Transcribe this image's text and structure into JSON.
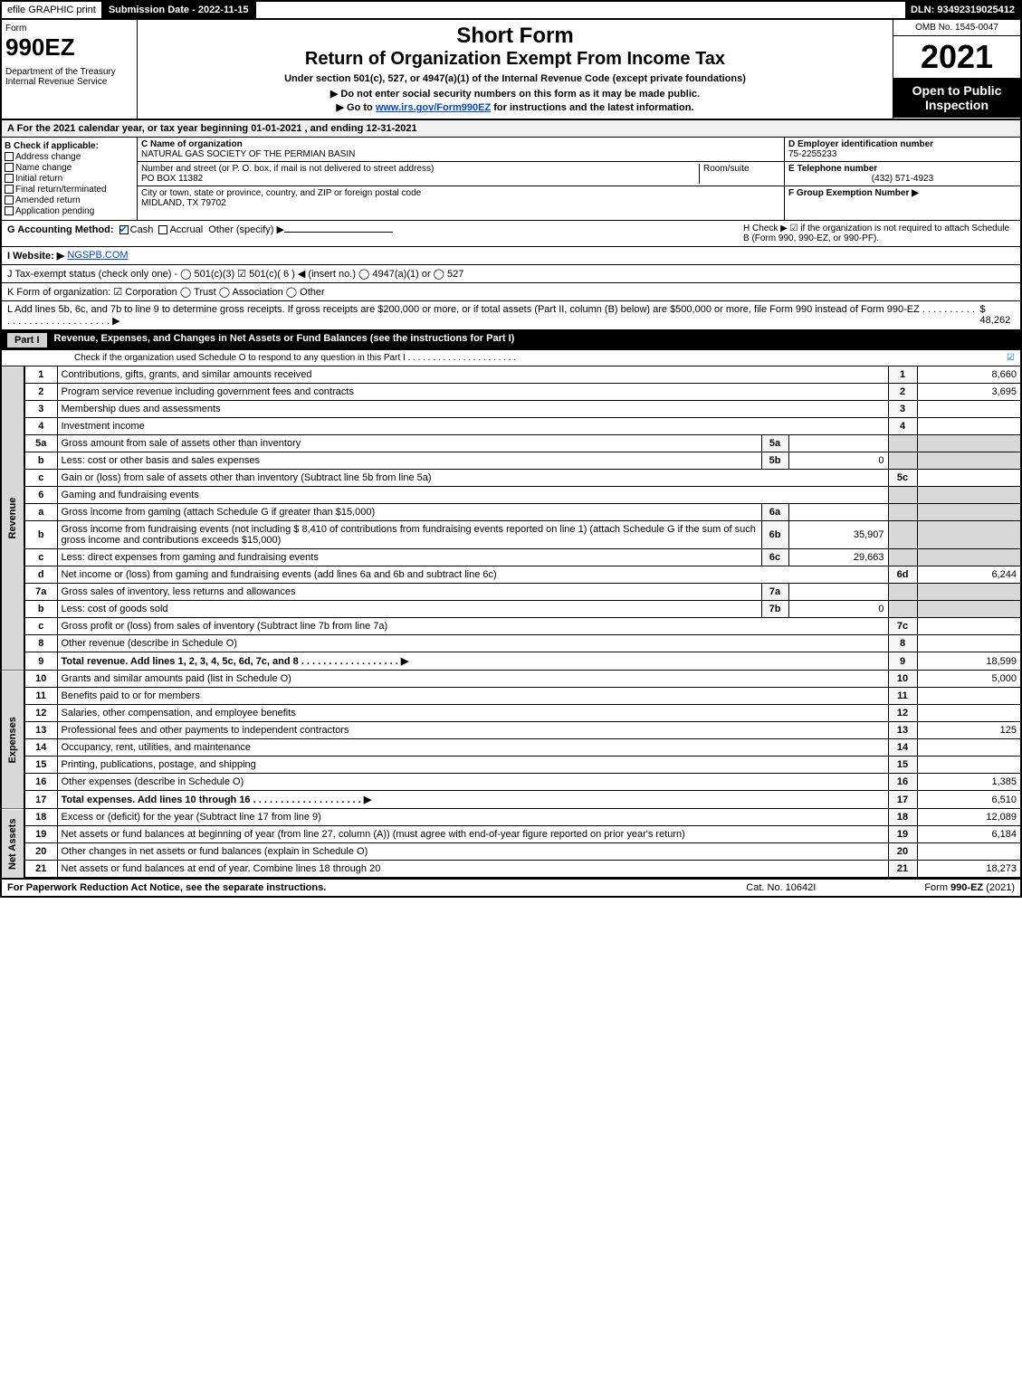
{
  "topbar": {
    "efile": "efile GRAPHIC print",
    "submission": "Submission Date - 2022-11-15",
    "dln": "DLN: 93492319025412"
  },
  "header": {
    "form_label": "Form",
    "form_number": "990EZ",
    "dept": "Department of the Treasury\nInternal Revenue Service",
    "title_main": "Short Form",
    "title_sub": "Return of Organization Exempt From Income Tax",
    "subtitle": "Under section 501(c), 527, or 4947(a)(1) of the Internal Revenue Code (except private foundations)",
    "instr1": "▶ Do not enter social security numbers on this form as it may be made public.",
    "instr2_pre": "▶ Go to ",
    "instr2_link": "www.irs.gov/Form990EZ",
    "instr2_post": " for instructions and the latest information.",
    "omb": "OMB No. 1545-0047",
    "year": "2021",
    "open": "Open to Public Inspection"
  },
  "rowA": "A  For the 2021 calendar year, or tax year beginning 01-01-2021 , and ending 12-31-2021",
  "sectionB": {
    "title": "B  Check if applicable:",
    "items": [
      "Address change",
      "Name change",
      "Initial return",
      "Final return/terminated",
      "Amended return",
      "Application pending"
    ]
  },
  "sectionC": {
    "name_lbl": "C Name of organization",
    "name": "NATURAL GAS SOCIETY OF THE PERMIAN BASIN",
    "street_lbl": "Number and street (or P. O. box, if mail is not delivered to street address)",
    "room_lbl": "Room/suite",
    "street": "PO BOX 11382",
    "city_lbl": "City or town, state or province, country, and ZIP or foreign postal code",
    "city": "MIDLAND, TX  79702"
  },
  "sectionDEF": {
    "d_lbl": "D Employer identification number",
    "d_val": "75-2255233",
    "e_lbl": "E Telephone number",
    "e_val": "(432) 571-4923",
    "f_lbl": "F Group Exemption Number ▶"
  },
  "rowGH": {
    "g": "G Accounting Method:",
    "g_cash": "Cash",
    "g_accrual": "Accrual",
    "g_other": "Other (specify) ▶",
    "h": "H  Check ▶ ☑ if the organization is not required to attach Schedule B (Form 990, 990-EZ, or 990-PF)."
  },
  "rowI": {
    "label": "I Website: ▶",
    "value": "NGSPB.COM"
  },
  "rowJ": "J Tax-exempt status (check only one) -  ◯ 501(c)(3)  ☑ 501(c)( 6 ) ◀ (insert no.)  ◯ 4947(a)(1) or  ◯ 527",
  "rowK": "K Form of organization:  ☑ Corporation  ◯ Trust  ◯ Association  ◯ Other",
  "rowL": {
    "text": "L Add lines 5b, 6c, and 7b to line 9 to determine gross receipts. If gross receipts are $200,000 or more, or if total assets (Part II, column (B) below) are $500,000 or more, file Form 990 instead of Form 990-EZ  . . . . . . . . . . . . . . . . . . . . . . . . . . . . . ▶ ",
    "amount": "$ 48,262"
  },
  "part1": {
    "roman": "Part I",
    "title": "Revenue, Expenses, and Changes in Net Assets or Fund Balances (see the instructions for Part I)",
    "sub": "Check if the organization used Schedule O to respond to any question in this Part I . . . . . . . . . . . . . . . . . . . . . .",
    "sub_checked": "☑"
  },
  "sections": {
    "revenue": "Revenue",
    "expenses": "Expenses",
    "netassets": "Net Assets"
  },
  "lines": [
    {
      "n": "1",
      "desc": "Contributions, gifts, grants, and similar amounts received",
      "ln": "1",
      "val": "8,660"
    },
    {
      "n": "2",
      "desc": "Program service revenue including government fees and contracts",
      "ln": "2",
      "val": "3,695"
    },
    {
      "n": "3",
      "desc": "Membership dues and assessments",
      "ln": "3",
      "val": ""
    },
    {
      "n": "4",
      "desc": "Investment income",
      "ln": "4",
      "val": ""
    },
    {
      "n": "5a",
      "desc": "Gross amount from sale of assets other than inventory",
      "midn": "5a",
      "midv": "",
      "shade": true
    },
    {
      "n": "b",
      "desc": "Less: cost or other basis and sales expenses",
      "midn": "5b",
      "midv": "0",
      "shade": true
    },
    {
      "n": "c",
      "desc": "Gain or (loss) from sale of assets other than inventory (Subtract line 5b from line 5a)",
      "ln": "5c",
      "val": ""
    },
    {
      "n": "6",
      "desc": "Gaming and fundraising events",
      "shade": true
    },
    {
      "n": "a",
      "desc": "Gross income from gaming (attach Schedule G if greater than $15,000)",
      "midn": "6a",
      "midv": "",
      "shade": true
    },
    {
      "n": "b",
      "desc": "Gross income from fundraising events (not including $  8,410  of contributions from fundraising events reported on line 1) (attach Schedule G if the sum of such gross income and contributions exceeds $15,000)",
      "midn": "6b",
      "midv": "35,907",
      "shade": true
    },
    {
      "n": "c",
      "desc": "Less: direct expenses from gaming and fundraising events",
      "midn": "6c",
      "midv": "29,663",
      "shade": true
    },
    {
      "n": "d",
      "desc": "Net income or (loss) from gaming and fundraising events (add lines 6a and 6b and subtract line 6c)",
      "ln": "6d",
      "val": "6,244"
    },
    {
      "n": "7a",
      "desc": "Gross sales of inventory, less returns and allowances",
      "midn": "7a",
      "midv": "",
      "shade": true
    },
    {
      "n": "b",
      "desc": "Less: cost of goods sold",
      "midn": "7b",
      "midv": "0",
      "shade": true
    },
    {
      "n": "c",
      "desc": "Gross profit or (loss) from sales of inventory (Subtract line 7b from line 7a)",
      "ln": "7c",
      "val": ""
    },
    {
      "n": "8",
      "desc": "Other revenue (describe in Schedule O)",
      "ln": "8",
      "val": ""
    },
    {
      "n": "9",
      "desc": "Total revenue. Add lines 1, 2, 3, 4, 5c, 6d, 7c, and 8  . . . . . . . . . . . . . . . . . . ▶",
      "ln": "9",
      "val": "18,599",
      "bold": true
    }
  ],
  "exp_lines": [
    {
      "n": "10",
      "desc": "Grants and similar amounts paid (list in Schedule O)",
      "ln": "10",
      "val": "5,000"
    },
    {
      "n": "11",
      "desc": "Benefits paid to or for members",
      "ln": "11",
      "val": ""
    },
    {
      "n": "12",
      "desc": "Salaries, other compensation, and employee benefits",
      "ln": "12",
      "val": ""
    },
    {
      "n": "13",
      "desc": "Professional fees and other payments to independent contractors",
      "ln": "13",
      "val": "125"
    },
    {
      "n": "14",
      "desc": "Occupancy, rent, utilities, and maintenance",
      "ln": "14",
      "val": ""
    },
    {
      "n": "15",
      "desc": "Printing, publications, postage, and shipping",
      "ln": "15",
      "val": ""
    },
    {
      "n": "16",
      "desc": "Other expenses (describe in Schedule O)",
      "ln": "16",
      "val": "1,385"
    },
    {
      "n": "17",
      "desc": "Total expenses. Add lines 10 through 16  . . . . . . . . . . . . . . . . . . . . ▶",
      "ln": "17",
      "val": "6,510",
      "bold": true
    }
  ],
  "net_lines": [
    {
      "n": "18",
      "desc": "Excess or (deficit) for the year (Subtract line 17 from line 9)",
      "ln": "18",
      "val": "12,089"
    },
    {
      "n": "19",
      "desc": "Net assets or fund balances at beginning of year (from line 27, column (A)) (must agree with end-of-year figure reported on prior year's return)",
      "ln": "19",
      "val": "6,184"
    },
    {
      "n": "20",
      "desc": "Other changes in net assets or fund balances (explain in Schedule O)",
      "ln": "20",
      "val": ""
    },
    {
      "n": "21",
      "desc": "Net assets or fund balances at end of year. Combine lines 18 through 20",
      "ln": "21",
      "val": "18,273"
    }
  ],
  "footer": {
    "left": "For Paperwork Reduction Act Notice, see the separate instructions.",
    "mid": "Cat. No. 10642I",
    "right_pre": "Form ",
    "right_bold": "990-EZ",
    "right_post": " (2021)"
  }
}
